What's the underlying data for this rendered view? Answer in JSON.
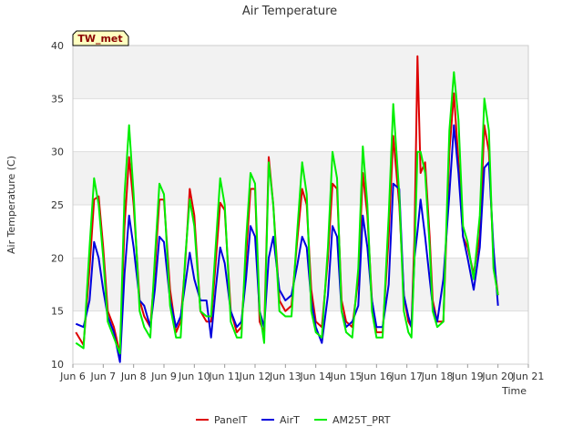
{
  "chart_data": {
    "type": "line",
    "title": "Air Temperature",
    "xlabel": "Time",
    "ylabel": "Air Temperature (C)",
    "xlim": [
      6,
      21
    ],
    "ylim": [
      10,
      40
    ],
    "x_ticks": [
      6,
      7,
      8,
      9,
      10,
      11,
      12,
      13,
      14,
      15,
      16,
      17,
      18,
      19,
      20,
      21
    ],
    "x_tick_labels": [
      "Jun 6",
      "Jun 7",
      "Jun 8",
      "Jun 9",
      "Jun 10",
      "Jun 11",
      "Jun 12",
      "Jun 13",
      "Jun 14",
      "Jun 15",
      "Jun 16",
      "Jun 17",
      "Jun 18",
      "Jun 19",
      "Jun 20",
      "Jun 21"
    ],
    "y_ticks": [
      10,
      15,
      20,
      25,
      30,
      35,
      40
    ],
    "y_tick_labels": [
      "10",
      "15",
      "20",
      "25",
      "30",
      "35",
      "40"
    ],
    "site_label": "TW_met",
    "legend_position": "bottom-center",
    "background_bands": "alternating gray",
    "series": [
      {
        "name": "PanelT",
        "color": "#dd0000",
        "x": [
          6.1,
          6.35,
          6.55,
          6.7,
          6.85,
          7.0,
          7.15,
          7.35,
          7.55,
          7.7,
          7.85,
          8.0,
          8.2,
          8.35,
          8.55,
          8.7,
          8.85,
          9.0,
          9.2,
          9.4,
          9.55,
          9.7,
          9.85,
          10.0,
          10.2,
          10.4,
          10.55,
          10.7,
          10.85,
          11.0,
          11.2,
          11.4,
          11.55,
          11.7,
          11.85,
          12.0,
          12.15,
          12.3,
          12.45,
          12.6,
          12.8,
          13.0,
          13.2,
          13.4,
          13.55,
          13.7,
          13.85,
          14.0,
          14.2,
          14.4,
          14.55,
          14.7,
          14.85,
          15.0,
          15.2,
          15.4,
          15.55,
          15.7,
          15.85,
          16.0,
          16.2,
          16.4,
          16.55,
          16.75,
          16.9,
          17.05,
          17.15,
          17.25,
          17.35,
          17.45,
          17.6,
          17.75,
          17.85,
          18.0,
          18.2,
          18.4,
          18.55,
          18.7,
          18.85,
          19.0,
          19.2,
          19.4,
          19.55,
          19.7,
          19.85,
          20.0
        ],
        "values": [
          13.0,
          11.8,
          19.0,
          25.5,
          25.8,
          21.0,
          15.0,
          13.5,
          11.0,
          23.0,
          29.5,
          25.0,
          16.0,
          14.5,
          13.5,
          19.0,
          25.5,
          25.5,
          17.0,
          13.0,
          14.0,
          19.5,
          26.5,
          24.0,
          15.0,
          14.0,
          14.0,
          19.5,
          25.2,
          24.5,
          15.0,
          13.0,
          13.5,
          20.0,
          26.5,
          26.5,
          14.0,
          13.0,
          29.5,
          25.0,
          16.0,
          15.0,
          15.5,
          22.0,
          26.5,
          25.0,
          17.0,
          14.0,
          13.5,
          20.0,
          27.0,
          26.5,
          16.0,
          14.0,
          13.5,
          18.0,
          28.0,
          24.0,
          16.0,
          13.0,
          13.0,
          22.0,
          31.5,
          25.0,
          16.5,
          14.0,
          13.5,
          22.0,
          39.0,
          28.0,
          29.0,
          22.0,
          16.0,
          14.0,
          14.0,
          30.0,
          35.5,
          29.0,
          22.0,
          21.0,
          18.5,
          22.0,
          32.5,
          30.0,
          20.0,
          16.5
        ]
      },
      {
        "name": "AirT",
        "color": "#0000dd",
        "x": [
          6.1,
          6.35,
          6.55,
          6.7,
          6.85,
          7.0,
          7.15,
          7.35,
          7.55,
          7.7,
          7.85,
          8.0,
          8.2,
          8.35,
          8.55,
          8.7,
          8.85,
          9.0,
          9.2,
          9.4,
          9.55,
          9.7,
          9.85,
          10.0,
          10.2,
          10.4,
          10.55,
          10.7,
          10.85,
          11.0,
          11.2,
          11.4,
          11.55,
          11.7,
          11.85,
          12.0,
          12.15,
          12.3,
          12.45,
          12.6,
          12.8,
          13.0,
          13.2,
          13.4,
          13.55,
          13.7,
          13.85,
          14.0,
          14.2,
          14.4,
          14.55,
          14.7,
          14.85,
          15.0,
          15.2,
          15.4,
          15.55,
          15.7,
          15.85,
          16.0,
          16.2,
          16.4,
          16.55,
          16.75,
          16.9,
          17.05,
          17.15,
          17.25,
          17.35,
          17.45,
          17.6,
          17.75,
          17.85,
          18.0,
          18.2,
          18.4,
          18.55,
          18.7,
          18.85,
          19.0,
          19.2,
          19.4,
          19.55,
          19.7,
          19.85,
          20.0
        ],
        "values": [
          13.8,
          13.5,
          16.0,
          21.5,
          20.0,
          17.0,
          14.5,
          13.0,
          10.2,
          18.5,
          24.0,
          21.0,
          16.0,
          15.5,
          13.5,
          17.0,
          22.0,
          21.5,
          16.0,
          13.5,
          14.5,
          17.5,
          20.5,
          18.0,
          16.0,
          16.0,
          12.5,
          17.0,
          21.0,
          19.5,
          15.0,
          13.5,
          14.0,
          18.0,
          23.0,
          22.0,
          15.0,
          13.5,
          20.0,
          22.0,
          17.0,
          16.0,
          16.5,
          19.5,
          22.0,
          21.0,
          16.0,
          13.5,
          12.0,
          16.5,
          23.0,
          22.0,
          15.0,
          13.5,
          14.0,
          15.5,
          24.0,
          21.0,
          16.0,
          13.5,
          13.5,
          17.5,
          27.0,
          26.5,
          16.5,
          14.5,
          13.5,
          20.0,
          22.5,
          25.5,
          22.0,
          18.0,
          15.5,
          14.0,
          18.0,
          26.0,
          32.5,
          28.0,
          22.0,
          20.0,
          17.0,
          21.0,
          28.5,
          29.0,
          21.0,
          15.5
        ]
      },
      {
        "name": "AM25T_PRT",
        "color": "#00ee00",
        "x": [
          6.1,
          6.35,
          6.55,
          6.7,
          6.85,
          7.0,
          7.15,
          7.35,
          7.55,
          7.7,
          7.85,
          8.0,
          8.2,
          8.35,
          8.55,
          8.7,
          8.85,
          9.0,
          9.2,
          9.4,
          9.55,
          9.7,
          9.85,
          10.0,
          10.2,
          10.4,
          10.55,
          10.7,
          10.85,
          11.0,
          11.2,
          11.4,
          11.55,
          11.7,
          11.85,
          12.0,
          12.15,
          12.3,
          12.45,
          12.6,
          12.8,
          13.0,
          13.2,
          13.4,
          13.55,
          13.7,
          13.85,
          14.0,
          14.2,
          14.4,
          14.55,
          14.7,
          14.85,
          15.0,
          15.2,
          15.4,
          15.55,
          15.7,
          15.85,
          16.0,
          16.2,
          16.4,
          16.55,
          16.75,
          16.9,
          17.05,
          17.15,
          17.25,
          17.35,
          17.45,
          17.6,
          17.75,
          17.85,
          18.0,
          18.2,
          18.4,
          18.55,
          18.7,
          18.85,
          19.0,
          19.2,
          19.4,
          19.55,
          19.7,
          19.85,
          20.0
        ],
        "values": [
          12.0,
          11.5,
          21.0,
          27.5,
          25.0,
          20.0,
          14.0,
          12.5,
          11.0,
          26.0,
          32.5,
          26.0,
          15.0,
          13.5,
          12.5,
          20.0,
          27.0,
          26.0,
          15.5,
          12.5,
          12.5,
          20.0,
          25.5,
          23.0,
          15.0,
          14.5,
          14.5,
          21.0,
          27.5,
          25.0,
          14.0,
          12.5,
          12.5,
          21.5,
          28.0,
          27.0,
          15.0,
          12.0,
          29.0,
          25.0,
          15.0,
          14.5,
          14.5,
          23.0,
          29.0,
          26.0,
          15.0,
          13.0,
          12.5,
          21.0,
          30.0,
          27.5,
          15.0,
          13.0,
          12.5,
          19.0,
          30.5,
          25.0,
          15.0,
          12.5,
          12.5,
          24.0,
          34.5,
          26.0,
          15.0,
          13.0,
          12.5,
          20.0,
          30.0,
          30.0,
          28.0,
          21.0,
          15.0,
          13.5,
          14.0,
          32.0,
          37.5,
          33.0,
          23.0,
          21.5,
          18.0,
          24.0,
          35.0,
          32.0,
          19.0,
          16.5
        ]
      }
    ]
  }
}
